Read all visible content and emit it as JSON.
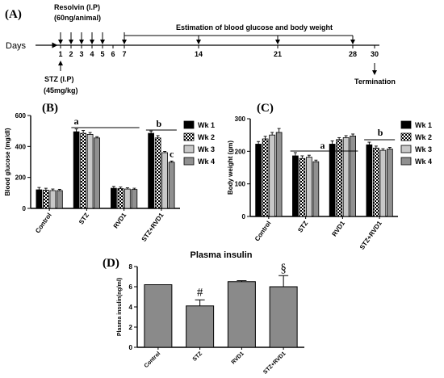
{
  "timeline": {
    "label": "(A)",
    "days_label": "Days",
    "days": [
      "1",
      "2",
      "3",
      "4",
      "5",
      "6",
      "7",
      "14",
      "21",
      "28",
      "30"
    ],
    "resolvin_title": "Resolvin (I.P)",
    "resolvin_dose": "(60ng/animal)",
    "estimation": "Estimation of blood glucose and body weight",
    "stz_title": "STZ (I.P)",
    "stz_dose": "(45mg/kg)",
    "termination": "Termination"
  },
  "chart_data": [
    {
      "label": "(B)",
      "type": "bar",
      "ylabel": "Blood glucose (mg/dl)",
      "xlabel": "",
      "ylim": [
        0,
        600
      ],
      "yticks": [
        "0",
        "200",
        "400",
        "600"
      ],
      "categories": [
        "Control",
        "STZ",
        "RVD1",
        "STZ+RVD1"
      ],
      "series": [
        {
          "name": "Wk 1",
          "values": [
            120,
            495,
            130,
            485
          ],
          "errors": [
            15,
            18,
            12,
            15
          ]
        },
        {
          "name": "Wk 2",
          "values": [
            118,
            485,
            128,
            455
          ],
          "errors": [
            12,
            18,
            10,
            15
          ]
        },
        {
          "name": "Wk 3",
          "values": [
            115,
            478,
            125,
            360
          ],
          "errors": [
            10,
            12,
            8,
            8
          ]
        },
        {
          "name": "Wk 4",
          "values": [
            115,
            455,
            122,
            298
          ],
          "errors": [
            8,
            8,
            8,
            8
          ]
        }
      ],
      "annotations": [
        "a",
        "b",
        "c"
      ],
      "legend_position": "right"
    },
    {
      "label": "(C)",
      "type": "bar",
      "ylabel": "Body weight (gm)",
      "xlabel": "",
      "ylim": [
        0,
        300
      ],
      "yticks": [
        "0",
        "100",
        "200",
        "300"
      ],
      "categories": [
        "Control",
        "STZ",
        "RVD1",
        "STZ+RVD1"
      ],
      "series": [
        {
          "name": "Wk 1",
          "values": [
            222,
            186,
            222,
            220
          ],
          "errors": [
            8,
            10,
            10,
            8
          ]
        },
        {
          "name": "Wk 2",
          "values": [
            238,
            178,
            236,
            210
          ],
          "errors": [
            8,
            8,
            6,
            6
          ]
        },
        {
          "name": "Wk 3",
          "values": [
            250,
            182,
            242,
            203
          ],
          "errors": [
            8,
            6,
            6,
            5
          ]
        },
        {
          "name": "Wk 4",
          "values": [
            258,
            168,
            247,
            207
          ],
          "errors": [
            12,
            5,
            6,
            5
          ]
        }
      ],
      "annotations": [
        "a",
        "b"
      ],
      "legend_position": "right"
    },
    {
      "label": "(D)",
      "type": "bar",
      "title": "Plasma insulin",
      "ylabel": "Plasma insulin(ng/ml)",
      "xlabel": "",
      "ylim": [
        0,
        8
      ],
      "yticks": [
        "0",
        "2",
        "4",
        "6",
        "8"
      ],
      "categories": [
        "Control",
        "STZ",
        "RVD1",
        "STZ+RVD1"
      ],
      "values": [
        6.2,
        4.1,
        6.5,
        6.0
      ],
      "errors": [
        0,
        0.6,
        0.1,
        1.1
      ],
      "annotations": [
        "",
        "#",
        "",
        "§"
      ]
    }
  ],
  "colors": {
    "wk1": "#000000",
    "wk3": "#c8c8c8",
    "wk4": "#909090",
    "insulin_bar": "#8a8a8a"
  }
}
